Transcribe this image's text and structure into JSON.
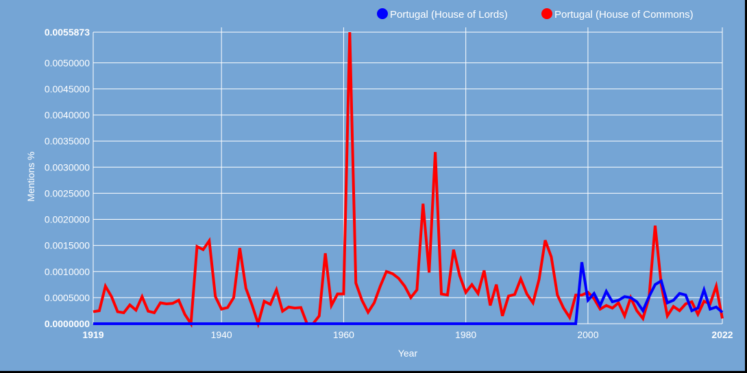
{
  "chart_data": {
    "type": "line",
    "xlabel": "Year",
    "ylabel": "Mentions %",
    "xlim": [
      1919,
      2022
    ],
    "ylim": [
      0,
      0.0055873
    ],
    "x_ticks": [
      "1919",
      "1940",
      "1960",
      "1980",
      "2000",
      "2022"
    ],
    "y_ticks": [
      "0.0000000",
      "0.0005000",
      "0.0010000",
      "0.0015000",
      "0.0020000",
      "0.0025000",
      "0.0030000",
      "0.0035000",
      "0.0040000",
      "0.0045000",
      "0.0050000",
      "0.0055873"
    ],
    "grid": true,
    "legend_position": "top-right",
    "background_color": "#75A5D5",
    "series": [
      {
        "name": "Portugal (House of Lords)",
        "color": "#0000FF",
        "x": [
          1919,
          1920,
          1921,
          1922,
          1923,
          1924,
          1925,
          1926,
          1927,
          1928,
          1929,
          1930,
          1931,
          1932,
          1933,
          1934,
          1935,
          1936,
          1937,
          1938,
          1939,
          1940,
          1941,
          1942,
          1943,
          1944,
          1945,
          1946,
          1947,
          1948,
          1949,
          1950,
          1951,
          1952,
          1953,
          1954,
          1955,
          1956,
          1957,
          1958,
          1959,
          1960,
          1961,
          1962,
          1963,
          1964,
          1965,
          1966,
          1967,
          1968,
          1969,
          1970,
          1971,
          1972,
          1973,
          1974,
          1975,
          1976,
          1977,
          1978,
          1979,
          1980,
          1981,
          1982,
          1983,
          1984,
          1985,
          1986,
          1987,
          1988,
          1989,
          1990,
          1991,
          1992,
          1993,
          1994,
          1995,
          1996,
          1997,
          1998,
          1999,
          2000,
          2001,
          2002,
          2003,
          2004,
          2005,
          2006,
          2007,
          2008,
          2009,
          2010,
          2011,
          2012,
          2013,
          2014,
          2015,
          2016,
          2017,
          2018,
          2019,
          2020,
          2021,
          2022
        ],
        "values": [
          0,
          0,
          0,
          0,
          0,
          0,
          0,
          0,
          0,
          0,
          0,
          0,
          0,
          0,
          0,
          0,
          0,
          0,
          0,
          0,
          0,
          0,
          0,
          0,
          0,
          0,
          0,
          0,
          0,
          0,
          0,
          0,
          0,
          0,
          0,
          0,
          0,
          0,
          0,
          0,
          0,
          0,
          0,
          0,
          0,
          0,
          0,
          0,
          0,
          0,
          0,
          0,
          0,
          0,
          0,
          0,
          0,
          0,
          0,
          0,
          0,
          0,
          0,
          0,
          0,
          0,
          0,
          0,
          0,
          0,
          0,
          0,
          0,
          0,
          0,
          0,
          0,
          0,
          0,
          0,
          0.00118,
          0.00045,
          0.00058,
          0.00035,
          0.00062,
          0.00042,
          0.00045,
          0.00052,
          0.0005,
          0.00042,
          0.00025,
          0.00052,
          0.00075,
          0.00082,
          0.0004,
          0.00045,
          0.00058,
          0.00055,
          0.00025,
          0.0003,
          0.00065,
          0.00028,
          0.00032,
          0.00022
        ]
      },
      {
        "name": "Portugal (House of Commons)",
        "color": "#FF0000",
        "x": [
          1919,
          1920,
          1921,
          1922,
          1923,
          1924,
          1925,
          1926,
          1927,
          1928,
          1929,
          1930,
          1931,
          1932,
          1933,
          1934,
          1935,
          1936,
          1937,
          1938,
          1939,
          1940,
          1941,
          1942,
          1943,
          1944,
          1945,
          1946,
          1947,
          1948,
          1949,
          1950,
          1951,
          1952,
          1953,
          1954,
          1955,
          1956,
          1957,
          1958,
          1959,
          1960,
          1961,
          1962,
          1963,
          1964,
          1965,
          1966,
          1967,
          1968,
          1969,
          1970,
          1971,
          1972,
          1973,
          1974,
          1975,
          1976,
          1977,
          1978,
          1979,
          1980,
          1981,
          1982,
          1983,
          1984,
          1985,
          1986,
          1987,
          1988,
          1989,
          1990,
          1991,
          1992,
          1993,
          1994,
          1995,
          1996,
          1997,
          1998,
          1999,
          2000,
          2001,
          2002,
          2003,
          2004,
          2005,
          2006,
          2007,
          2008,
          2009,
          2010,
          2011,
          2012,
          2013,
          2014,
          2015,
          2016,
          2017,
          2018,
          2019,
          2020,
          2021,
          2022
        ],
        "values": [
          0.00023,
          0.00025,
          0.00072,
          0.00052,
          0.00023,
          0.00021,
          0.00036,
          0.00026,
          0.00052,
          0.00024,
          0.00021,
          0.0004,
          0.00038,
          0.00039,
          0.00045,
          0.00018,
          0.0,
          0.00148,
          0.00142,
          0.00159,
          0.00052,
          0.00028,
          0.00031,
          0.0005,
          0.00145,
          0.00068,
          0.00036,
          0.0,
          0.00043,
          0.00037,
          0.00065,
          0.00024,
          0.00032,
          0.0003,
          0.00031,
          0.0,
          0.0,
          0.00015,
          0.00135,
          0.00035,
          0.00057,
          0.00057,
          0.0055873,
          0.00078,
          0.00045,
          0.00022,
          0.0004,
          0.00072,
          0.001,
          0.00096,
          0.00087,
          0.00072,
          0.0005,
          0.00065,
          0.0023,
          0.00098,
          0.00329,
          0.00057,
          0.00055,
          0.00142,
          0.00092,
          0.0006,
          0.00075,
          0.00058,
          0.00102,
          0.00035,
          0.00075,
          0.00015,
          0.00053,
          0.00056,
          0.00086,
          0.00057,
          0.0004,
          0.00085,
          0.0016,
          0.00128,
          0.00055,
          0.0003,
          0.00012,
          0.00055,
          0.00055,
          0.0006,
          0.00048,
          0.00028,
          0.00035,
          0.0003,
          0.0004,
          0.00015,
          0.0005,
          0.00025,
          0.0001,
          0.0005,
          0.00188,
          0.00075,
          0.00015,
          0.00033,
          0.00025,
          0.00038,
          0.00042,
          0.00018,
          0.00043,
          0.00038,
          0.00072,
          0.0001
        ]
      }
    ]
  }
}
